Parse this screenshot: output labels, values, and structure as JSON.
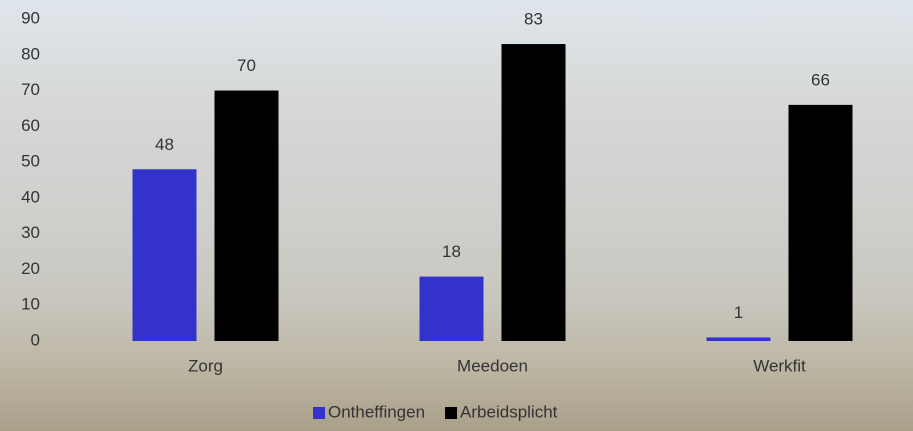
{
  "chart_data": {
    "type": "bar",
    "categories": [
      "Zorg",
      "Meedoen",
      "Werkfit"
    ],
    "series": [
      {
        "name": "Ontheffingen",
        "color": "#3333cc",
        "values": [
          48,
          18,
          1
        ]
      },
      {
        "name": "Arbeidsplicht",
        "color": "#000000",
        "values": [
          70,
          83,
          66
        ]
      }
    ],
    "ylim": [
      0,
      90
    ],
    "yticks": [
      0,
      10,
      20,
      30,
      40,
      50,
      60,
      70,
      80,
      90
    ],
    "grid": false,
    "legend": "bottom"
  }
}
